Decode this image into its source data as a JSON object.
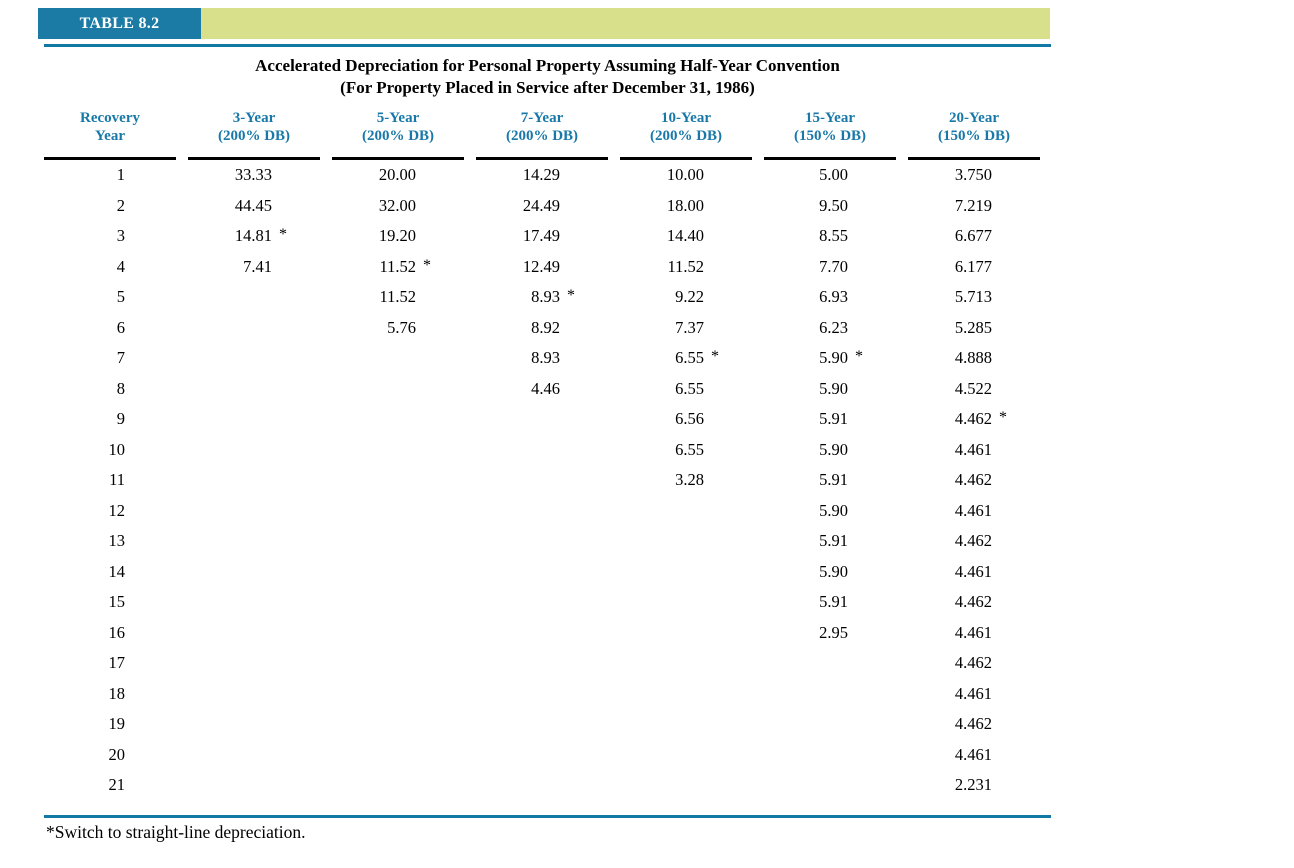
{
  "banner": {
    "tag": "TABLE 8.2"
  },
  "title": {
    "line1": "Accelerated Depreciation for Personal Property Assuming Half-Year Convention",
    "line2": "(For Property Placed in Service after December 31, 1986)"
  },
  "footnote": "*Switch to straight-line depreciation.",
  "footnote_meaning": "Asterisk marks the year of switch to straight-line depreciation",
  "colors": {
    "banner_teal": "#1b7ba4",
    "banner_olive": "#d9e08c",
    "rule_blue": "#1279a5",
    "header_text_blue": "#1878a8",
    "body_text": "#000000"
  },
  "table": {
    "columns": [
      {
        "line1": "Recovery",
        "line2": "Year"
      },
      {
        "line1": "3-Year",
        "line2": "(200% DB)"
      },
      {
        "line1": "5-Year",
        "line2": "(200% DB)"
      },
      {
        "line1": "7-Year",
        "line2": "(200% DB)"
      },
      {
        "line1": "10-Year",
        "line2": "(200% DB)"
      },
      {
        "line1": "15-Year",
        "line2": "(150% DB)"
      },
      {
        "line1": "20-Year",
        "line2": "(150% DB)"
      }
    ],
    "rows": [
      [
        "1",
        "33.33",
        "20.00",
        "14.29",
        "10.00",
        "5.00",
        "3.750"
      ],
      [
        "2",
        "44.45",
        "32.00",
        "24.49",
        "18.00",
        "9.50",
        "7.219"
      ],
      [
        "3",
        "14.81*",
        "19.20",
        "17.49",
        "14.40",
        "8.55",
        "6.677"
      ],
      [
        "4",
        "7.41",
        "11.52*",
        "12.49",
        "11.52",
        "7.70",
        "6.177"
      ],
      [
        "5",
        "",
        "11.52",
        "8.93*",
        "9.22",
        "6.93",
        "5.713"
      ],
      [
        "6",
        "",
        "5.76",
        "8.92",
        "7.37",
        "6.23",
        "5.285"
      ],
      [
        "7",
        "",
        "",
        "8.93",
        "6.55*",
        "5.90*",
        "4.888"
      ],
      [
        "8",
        "",
        "",
        "4.46",
        "6.55",
        "5.90",
        "4.522"
      ],
      [
        "9",
        "",
        "",
        "",
        "6.56",
        "5.91",
        "4.462*"
      ],
      [
        "10",
        "",
        "",
        "",
        "6.55",
        "5.90",
        "4.461"
      ],
      [
        "11",
        "",
        "",
        "",
        "3.28",
        "5.91",
        "4.462"
      ],
      [
        "12",
        "",
        "",
        "",
        "",
        "5.90",
        "4.461"
      ],
      [
        "13",
        "",
        "",
        "",
        "",
        "5.91",
        "4.462"
      ],
      [
        "14",
        "",
        "",
        "",
        "",
        "5.90",
        "4.461"
      ],
      [
        "15",
        "",
        "",
        "",
        "",
        "5.91",
        "4.462"
      ],
      [
        "16",
        "",
        "",
        "",
        "",
        "2.95",
        "4.461"
      ],
      [
        "17",
        "",
        "",
        "",
        "",
        "",
        "4.462"
      ],
      [
        "18",
        "",
        "",
        "",
        "",
        "",
        "4.461"
      ],
      [
        "19",
        "",
        "",
        "",
        "",
        "",
        "4.462"
      ],
      [
        "20",
        "",
        "",
        "",
        "",
        "",
        "4.461"
      ],
      [
        "21",
        "",
        "",
        "",
        "",
        "",
        "2.231"
      ]
    ]
  }
}
